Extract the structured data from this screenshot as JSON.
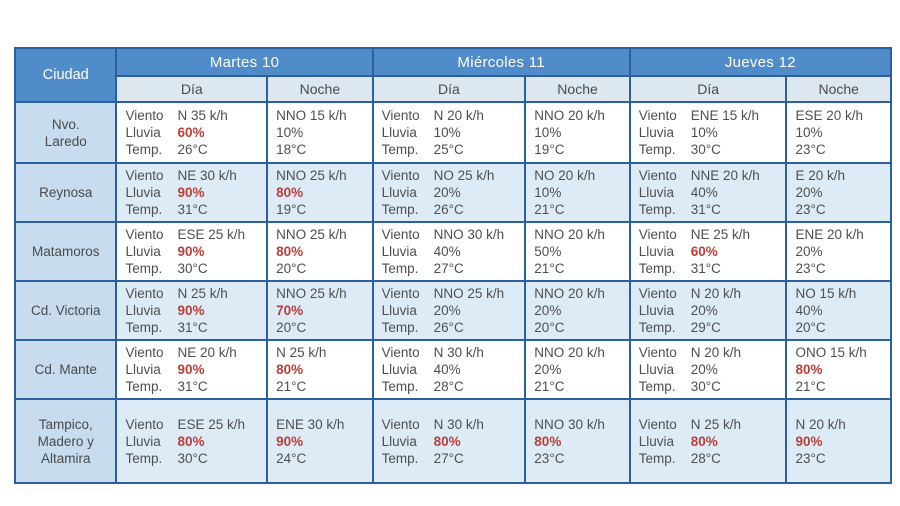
{
  "chart_data": {
    "type": "table",
    "corner_label": "Ciudad",
    "day_headers": [
      "Martes 10",
      "Miércoles 11",
      "Jueves 12"
    ],
    "subheaders": {
      "day": "Día",
      "night": "Noche"
    },
    "metric_labels": {
      "wind": "Viento",
      "rain": "Lluvia",
      "temp": "Temp."
    },
    "columns_per_day": [
      "Día",
      "Noche"
    ],
    "colors": {
      "header_bg": "#4f8cc9",
      "header_text": "#ffffff",
      "subheader_bg": "#dde7f0",
      "city_column_bg": "#c7dcee",
      "alt_row_bg": "#dcebf5",
      "border": "#2b5f9d",
      "body_text": "#4f4f4f",
      "rain_alert_text": "#bb3f39"
    },
    "rows": [
      {
        "city": "Nvo. Laredo",
        "city_lines": [
          "Nvo.",
          "Laredo"
        ],
        "cells": [
          {
            "wind": "N 35 k/h",
            "rain": "60%",
            "rain_alert": true,
            "temp": "26°C"
          },
          {
            "wind": "NNO 15 k/h",
            "rain": "10%",
            "rain_alert": false,
            "temp": "18°C"
          },
          {
            "wind": "N 20 k/h",
            "rain": "10%",
            "rain_alert": false,
            "temp": "25°C"
          },
          {
            "wind": "NNO 20 k/h",
            "rain": "10%",
            "rain_alert": false,
            "temp": "19°C"
          },
          {
            "wind": "ENE 15 k/h",
            "rain": "10%",
            "rain_alert": false,
            "temp": "30°C"
          },
          {
            "wind": "ESE 20 k/h",
            "rain": "10%",
            "rain_alert": false,
            "temp": "23°C"
          }
        ]
      },
      {
        "city": "Reynosa",
        "city_lines": [
          "Reynosa"
        ],
        "cells": [
          {
            "wind": "NE 30 k/h",
            "rain": "90%",
            "rain_alert": true,
            "temp": "31°C"
          },
          {
            "wind": "NNO 25 k/h",
            "rain": "80%",
            "rain_alert": true,
            "temp": "19°C"
          },
          {
            "wind": "NO 25 k/h",
            "rain": "20%",
            "rain_alert": false,
            "temp": "26°C"
          },
          {
            "wind": "NO 20 k/h",
            "rain": "10%",
            "rain_alert": false,
            "temp": "21°C"
          },
          {
            "wind": "NNE 20 k/h",
            "rain": "40%",
            "rain_alert": false,
            "temp": "31°C"
          },
          {
            "wind": "E 20 k/h",
            "rain": "20%",
            "rain_alert": false,
            "temp": "23°C"
          }
        ]
      },
      {
        "city": "Matamoros",
        "city_lines": [
          "Matamoros"
        ],
        "cells": [
          {
            "wind": "ESE 25 k/h",
            "rain": "90%",
            "rain_alert": true,
            "temp": "30°C"
          },
          {
            "wind": "NNO 25 k/h",
            "rain": "80%",
            "rain_alert": true,
            "temp": "20°C"
          },
          {
            "wind": "NNO 30 k/h",
            "rain": "40%",
            "rain_alert": false,
            "temp": "27°C"
          },
          {
            "wind": "NNO 20 k/h",
            "rain": "50%",
            "rain_alert": false,
            "temp": "21°C"
          },
          {
            "wind": "NE 25 k/h",
            "rain": "60%",
            "rain_alert": true,
            "temp": "31°C"
          },
          {
            "wind": "ENE 20 k/h",
            "rain": "20%",
            "rain_alert": false,
            "temp": "23°C"
          }
        ]
      },
      {
        "city": "Cd. Victoria",
        "city_lines": [
          "Cd. Victoria"
        ],
        "cells": [
          {
            "wind": "N 25 k/h",
            "rain": "90%",
            "rain_alert": true,
            "temp": "31°C"
          },
          {
            "wind": "NNO 25 k/h",
            "rain": "70%",
            "rain_alert": true,
            "temp": "20°C"
          },
          {
            "wind": "NNO 25 k/h",
            "rain": "20%",
            "rain_alert": false,
            "temp": "26°C"
          },
          {
            "wind": "NNO 20 k/h",
            "rain": "20%",
            "rain_alert": false,
            "temp": "20°C"
          },
          {
            "wind": "N 20 k/h",
            "rain": "20%",
            "rain_alert": false,
            "temp": "29°C"
          },
          {
            "wind": "NO 15 k/h",
            "rain": "40%",
            "rain_alert": false,
            "temp": "20°C"
          }
        ]
      },
      {
        "city": "Cd. Mante",
        "city_lines": [
          "Cd. Mante"
        ],
        "cells": [
          {
            "wind": "NE 20 k/h",
            "rain": "90%",
            "rain_alert": true,
            "temp": "31°C"
          },
          {
            "wind": "N 25 k/h",
            "rain": "80%",
            "rain_alert": true,
            "temp": "21°C"
          },
          {
            "wind": "N 30 k/h",
            "rain": "40%",
            "rain_alert": false,
            "temp": "28°C"
          },
          {
            "wind": "NNO 20 k/h",
            "rain": "20%",
            "rain_alert": false,
            "temp": "21°C"
          },
          {
            "wind": "N 20 k/h",
            "rain": "20%",
            "rain_alert": false,
            "temp": "30°C"
          },
          {
            "wind": "ONO 15 k/h",
            "rain": "80%",
            "rain_alert": true,
            "temp": "21°C"
          }
        ]
      },
      {
        "city": "Tampico, Madero y Altamira",
        "city_lines": [
          "Tampico,",
          "Madero y",
          "Altamira"
        ],
        "cells": [
          {
            "wind": "ESE 25 k/h",
            "rain": "80%",
            "rain_alert": true,
            "temp": "30°C"
          },
          {
            "wind": "ENE 30 k/h",
            "rain": "90%",
            "rain_alert": true,
            "temp": "24°C"
          },
          {
            "wind": "N 30 k/h",
            "rain": "80%",
            "rain_alert": true,
            "temp": "27°C"
          },
          {
            "wind": "NNO 30 k/h",
            "rain": "80%",
            "rain_alert": true,
            "temp": "23°C"
          },
          {
            "wind": "N 25 k/h",
            "rain": "80%",
            "rain_alert": true,
            "temp": "28°C"
          },
          {
            "wind": "N 20 k/h",
            "rain": "90%",
            "rain_alert": true,
            "temp": "23°C"
          }
        ]
      }
    ]
  }
}
